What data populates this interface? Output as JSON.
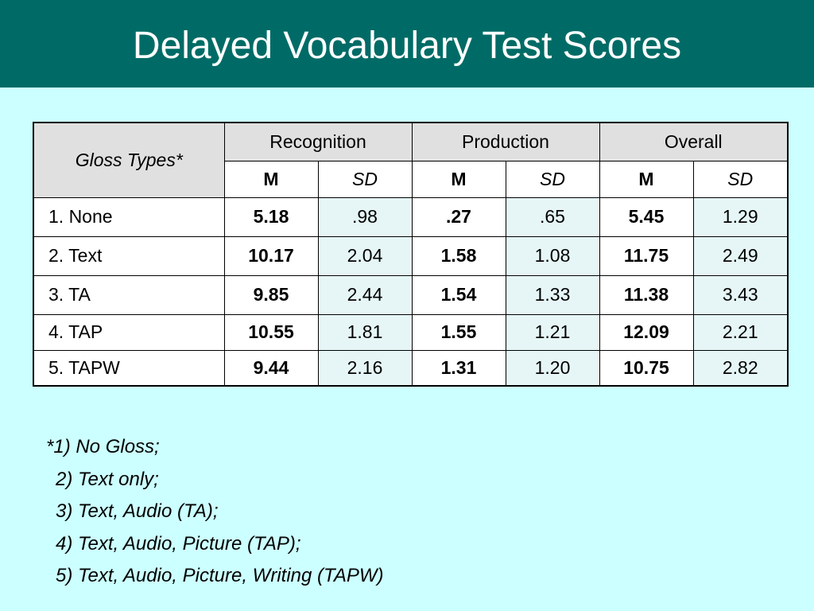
{
  "slide": {
    "title": "Delayed Vocabulary Test Scores"
  },
  "table": {
    "corner_label": "Gloss Types*",
    "groups": [
      "Recognition",
      "Production",
      "Overall"
    ],
    "subheaders": [
      "M",
      "SD",
      "M",
      "SD",
      "M",
      "SD"
    ],
    "rows": [
      {
        "label": "1. None",
        "values": [
          "5.18",
          ".98",
          ".27",
          ".65",
          "5.45",
          "1.29"
        ]
      },
      {
        "label": "2. Text",
        "values": [
          "10.17",
          "2.04",
          "1.58",
          "1.08",
          "11.75",
          "2.49"
        ]
      },
      {
        "label": "3. TA",
        "values": [
          "9.85",
          "2.44",
          "1.54",
          "1.33",
          "11.38",
          "3.43"
        ]
      },
      {
        "label": "4. TAP",
        "values": [
          "10.55",
          "1.81",
          "1.55",
          "1.21",
          "12.09",
          "2.21"
        ]
      },
      {
        "label": "5. TAPW",
        "values": [
          "9.44",
          "2.16",
          "1.31",
          "1.20",
          "10.75",
          "2.82"
        ]
      }
    ]
  },
  "footnotes": [
    "*1) No Gloss;",
    "2) Text only;",
    "3) Text, Audio (TA);",
    "4) Text, Audio, Picture (TAP);",
    "5) Text, Audio, Picture, Writing (TAPW)"
  ]
}
